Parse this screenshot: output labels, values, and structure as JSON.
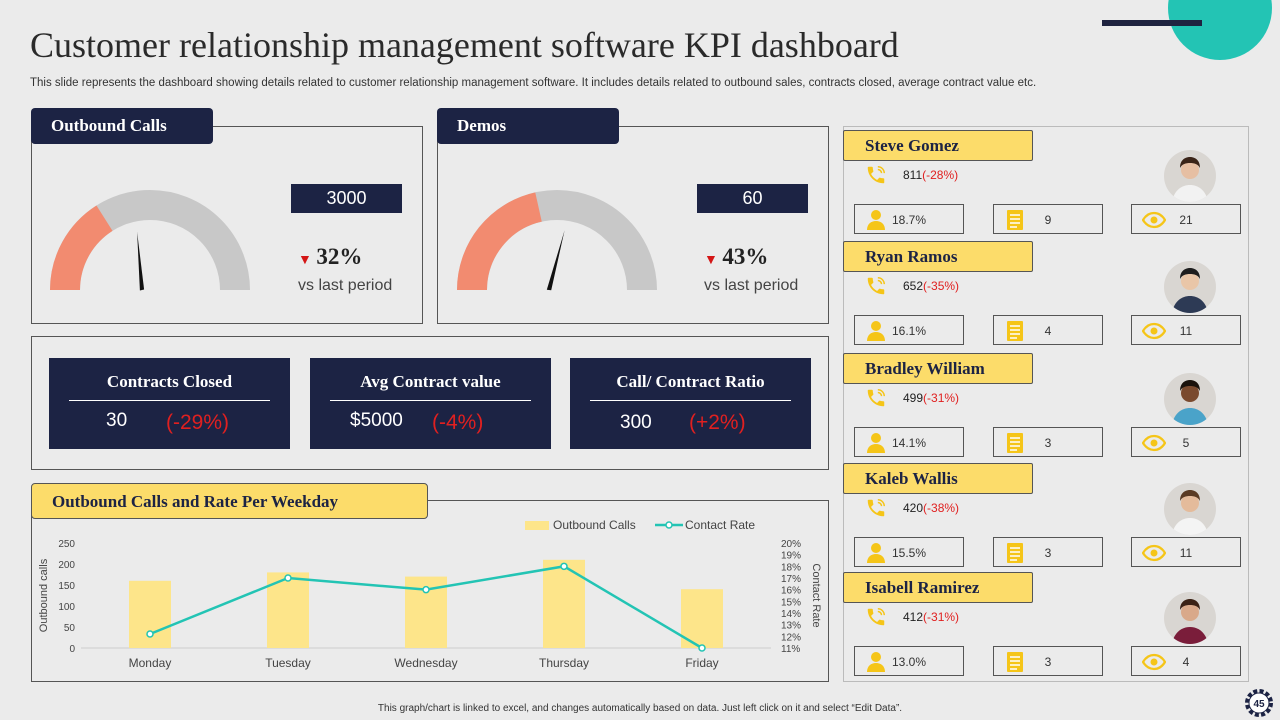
{
  "header": {
    "title": "Customer relationship management software KPI dashboard",
    "subtitle": "This slide represents the dashboard showing details related to customer relationship management software. It includes details related to outbound sales, contracts closed, average contract value etc."
  },
  "outbound": {
    "label": "Outbound Calls",
    "value": "3000",
    "change": "32%",
    "vs": "vs last period",
    "gauge_fraction": 0.32
  },
  "demos": {
    "label": "Demos",
    "value": "60",
    "change": "43%",
    "vs": "vs last period",
    "gauge_fraction": 0.43
  },
  "kpis": [
    {
      "title": "Contracts Closed",
      "value": "30",
      "change": "(-29%)"
    },
    {
      "title": "Avg Contract value",
      "value": "$5000",
      "change": "(-4%)"
    },
    {
      "title": "Call/ Contract Ratio",
      "value": "300",
      "change": "(+2%)"
    }
  ],
  "chart": {
    "tab": "Outbound Calls and Rate Per Weekday"
  },
  "chart_data": {
    "type": "bar",
    "title": "Outbound Calls and Rate Per Weekday",
    "categories": [
      "Monday",
      "Tuesday",
      "Wednesday",
      "Thursday",
      "Friday"
    ],
    "series": [
      {
        "name": "Outbound Calls",
        "type": "bar",
        "axis": "left",
        "values": [
          160,
          180,
          170,
          210,
          140
        ]
      },
      {
        "name": "Contact Rate",
        "type": "line",
        "axis": "right",
        "values": [
          12.2,
          17.0,
          16.0,
          18.0,
          11.0
        ]
      }
    ],
    "ylabel": "Outbound calls",
    "ylim": [
      0,
      250
    ],
    "yticks": [
      "250",
      "200",
      "150",
      "100",
      "50",
      "0"
    ],
    "y2label": "Contact Rate",
    "y2lim": [
      11,
      20
    ],
    "y2ticks": [
      "20%",
      "19%",
      "18%",
      "17%",
      "16%",
      "15%",
      "14%",
      "13%",
      "12%",
      "11%"
    ],
    "legend": "top-right"
  },
  "people": [
    {
      "name": "Steve Gomez",
      "calls": "811",
      "change": "(-28%)",
      "stat1": "18.7%",
      "stat2": "9",
      "stat3": "21"
    },
    {
      "name": "Ryan Ramos",
      "calls": "652",
      "change": "(-35%)",
      "stat1": "16.1%",
      "stat2": "4",
      "stat3": "11"
    },
    {
      "name": "Bradley William",
      "calls": "499",
      "change": "(-31%)",
      "stat1": "14.1%",
      "stat2": "3",
      "stat3": "5"
    },
    {
      "name": "Kaleb Wallis",
      "calls": "420",
      "change": "(-38%)",
      "stat1": "15.5%",
      "stat2": "3",
      "stat3": "11"
    },
    {
      "name": "Isabell Ramirez",
      "calls": "412",
      "change": "(-31%)",
      "stat1": "13.0%",
      "stat2": "3",
      "stat3": "4"
    }
  ],
  "footer": {
    "note": "This graph/chart is linked to excel, and changes automatically based on data. Just left click on it and select “Edit Data”.",
    "page": "45"
  },
  "colors": {
    "navy": "#1c2344",
    "yellow": "#fcdc6a",
    "salmon": "#f28b70",
    "teal": "#23c4b4",
    "red": "#e02020"
  }
}
